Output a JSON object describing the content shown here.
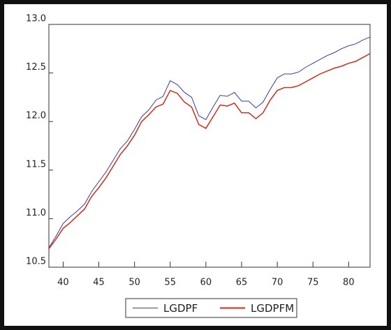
{
  "chart_data": {
    "type": "line",
    "x": [
      38,
      39,
      40,
      41,
      42,
      43,
      44,
      45,
      46,
      47,
      48,
      49,
      50,
      51,
      52,
      53,
      54,
      55,
      56,
      57,
      58,
      59,
      60,
      61,
      62,
      63,
      64,
      65,
      66,
      67,
      68,
      69,
      70,
      71,
      72,
      73,
      74,
      75,
      76,
      77,
      78,
      79,
      80,
      81,
      82,
      83
    ],
    "series": [
      {
        "name": "LGDPF",
        "color": "#3a3aa8",
        "values": [
          10.7,
          10.82,
          10.95,
          11.02,
          11.08,
          11.15,
          11.28,
          11.38,
          11.48,
          11.6,
          11.72,
          11.8,
          11.92,
          12.05,
          12.12,
          12.22,
          12.26,
          12.42,
          12.38,
          12.3,
          12.25,
          12.06,
          12.02,
          12.15,
          12.27,
          12.26,
          12.3,
          12.21,
          12.21,
          12.14,
          12.2,
          12.33,
          12.45,
          12.49,
          12.49,
          12.51,
          12.56,
          12.6,
          12.64,
          12.68,
          12.71,
          12.75,
          12.78,
          12.8,
          12.84,
          12.87
        ]
      },
      {
        "name": "LGDPFM",
        "color": "#d42a1a",
        "values": [
          10.69,
          10.79,
          10.9,
          10.96,
          11.03,
          11.1,
          11.23,
          11.32,
          11.42,
          11.54,
          11.66,
          11.75,
          11.86,
          12.0,
          12.07,
          12.15,
          12.18,
          12.32,
          12.29,
          12.2,
          12.15,
          11.97,
          11.93,
          12.05,
          12.17,
          12.16,
          12.19,
          12.09,
          12.09,
          12.03,
          12.09,
          12.22,
          12.32,
          12.35,
          12.35,
          12.37,
          12.41,
          12.45,
          12.49,
          12.52,
          12.55,
          12.57,
          12.6,
          12.62,
          12.66,
          12.7
        ]
      }
    ],
    "xlim": [
      38,
      83
    ],
    "xticks": [
      40,
      45,
      50,
      55,
      60,
      65,
      70,
      75,
      80
    ],
    "ylim": [
      10.5,
      13
    ],
    "yticks": [
      {
        "value": 10.5,
        "label": "10.5"
      },
      {
        "value": 11,
        "label": "11.0"
      },
      {
        "value": 11.5,
        "label": "11.5"
      },
      {
        "value": 12,
        "label": "12.0"
      },
      {
        "value": 12.5,
        "label": "12.5"
      },
      {
        "value": 13,
        "label": "13.0"
      }
    ],
    "legend": "bottom"
  }
}
